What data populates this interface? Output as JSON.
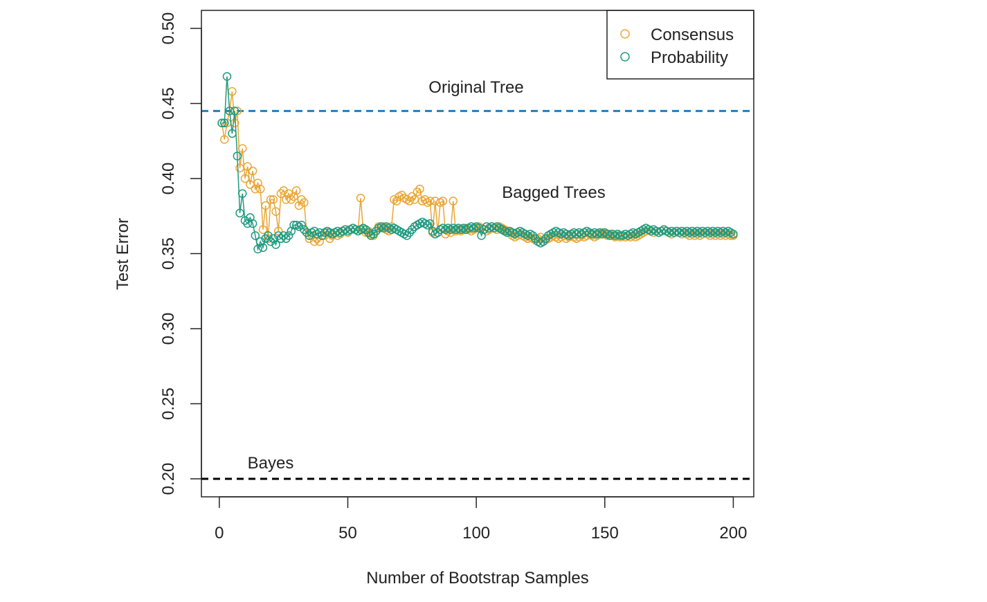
{
  "chart_data": {
    "type": "line",
    "xlabel": "Number of Bootstrap Samples",
    "ylabel": "Test Error",
    "xlim": [
      -6.96,
      207.96
    ],
    "ylim": [
      0.188,
      0.512
    ],
    "xticks": [
      0,
      50,
      100,
      150,
      200
    ],
    "yticks": [
      {
        "value": 0.2,
        "label": "0.20"
      },
      0.25,
      {
        "value": 0.3,
        "label": "0.30"
      },
      0.35,
      {
        "value": 0.4,
        "label": "0.40"
      },
      0.45,
      {
        "value": 0.5,
        "label": "0.50"
      }
    ],
    "legend": "top-right",
    "reference_lines": [
      {
        "value": 0.445,
        "color": "#1f7fc0"
      },
      {
        "value": 0.2,
        "color": "#000000"
      }
    ],
    "annotations": [
      "Original Tree",
      "Bagged Trees",
      "Bayes"
    ],
    "x": [
      1,
      2,
      3,
      4,
      5,
      6,
      7,
      8,
      9,
      10,
      11,
      12,
      13,
      14,
      15,
      16,
      17,
      18,
      19,
      20,
      21,
      22,
      23,
      24,
      25,
      26,
      27,
      28,
      29,
      30,
      31,
      32,
      33,
      34,
      35,
      36,
      37,
      38,
      39,
      40,
      41,
      42,
      43,
      44,
      45,
      46,
      47,
      48,
      49,
      50,
      51,
      52,
      53,
      54,
      55,
      56,
      57,
      58,
      59,
      60,
      61,
      62,
      63,
      64,
      65,
      66,
      67,
      68,
      69,
      70,
      71,
      72,
      73,
      74,
      75,
      76,
      77,
      78,
      79,
      80,
      81,
      82,
      83,
      84,
      85,
      86,
      87,
      88,
      89,
      90,
      91,
      92,
      93,
      94,
      95,
      96,
      97,
      98,
      99,
      100,
      101,
      102,
      103,
      104,
      105,
      106,
      107,
      108,
      109,
      110,
      111,
      112,
      113,
      114,
      115,
      116,
      117,
      118,
      119,
      120,
      121,
      122,
      123,
      124,
      125,
      126,
      127,
      128,
      129,
      130,
      131,
      132,
      133,
      134,
      135,
      136,
      137,
      138,
      139,
      140,
      141,
      142,
      143,
      144,
      145,
      146,
      147,
      148,
      149,
      150,
      151,
      152,
      153,
      154,
      155,
      156,
      157,
      158,
      159,
      160,
      161,
      162,
      163,
      164,
      165,
      166,
      167,
      168,
      169,
      170,
      171,
      172,
      173,
      174,
      175,
      176,
      177,
      178,
      179,
      180,
      181,
      182,
      183,
      184,
      185,
      186,
      187,
      188,
      189,
      190,
      191,
      192,
      193,
      194,
      195,
      196,
      197,
      198,
      199,
      200
    ],
    "series": [
      {
        "name": "Consensus",
        "color": "#eaa636",
        "values": [
          0.437,
          0.426,
          0.437,
          0.445,
          0.458,
          0.437,
          0.445,
          0.407,
          0.42,
          0.4,
          0.408,
          0.396,
          0.405,
          0.393,
          0.397,
          0.393,
          0.366,
          0.382,
          0.36,
          0.386,
          0.386,
          0.378,
          0.365,
          0.39,
          0.392,
          0.386,
          0.39,
          0.386,
          0.388,
          0.392,
          0.382,
          0.386,
          0.384,
          0.364,
          0.36,
          0.362,
          0.358,
          0.36,
          0.358,
          0.362,
          0.362,
          0.364,
          0.36,
          0.362,
          0.364,
          0.362,
          0.363,
          0.365,
          0.366,
          0.364,
          0.366,
          0.367,
          0.366,
          0.365,
          0.387,
          0.366,
          0.364,
          0.365,
          0.363,
          0.362,
          0.365,
          0.368,
          0.367,
          0.368,
          0.366,
          0.365,
          0.368,
          0.386,
          0.385,
          0.388,
          0.389,
          0.387,
          0.386,
          0.385,
          0.388,
          0.386,
          0.391,
          0.393,
          0.385,
          0.386,
          0.384,
          0.385,
          0.364,
          0.385,
          0.364,
          0.384,
          0.385,
          0.363,
          0.365,
          0.364,
          0.385,
          0.365,
          0.366,
          0.365,
          0.366,
          0.367,
          0.366,
          0.365,
          0.366,
          0.367,
          0.368,
          0.367,
          0.366,
          0.365,
          0.366,
          0.368,
          0.367,
          0.366,
          0.368,
          0.367,
          0.366,
          0.365,
          0.364,
          0.362,
          0.361,
          0.362,
          0.363,
          0.362,
          0.361,
          0.36,
          0.361,
          0.36,
          0.359,
          0.36,
          0.361,
          0.358,
          0.359,
          0.36,
          0.361,
          0.362,
          0.361,
          0.36,
          0.361,
          0.362,
          0.36,
          0.361,
          0.362,
          0.361,
          0.36,
          0.361,
          0.362,
          0.361,
          0.362,
          0.363,
          0.362,
          0.361,
          0.362,
          0.363,
          0.364,
          0.363,
          0.362,
          0.363,
          0.362,
          0.361,
          0.362,
          0.361,
          0.362,
          0.361,
          0.362,
          0.361,
          0.362,
          0.361,
          0.362,
          0.363,
          0.364,
          0.365,
          0.366,
          0.365,
          0.364,
          0.365,
          0.364,
          0.365,
          0.366,
          0.365,
          0.364,
          0.363,
          0.364,
          0.365,
          0.364,
          0.363,
          0.364,
          0.363,
          0.362,
          0.363,
          0.362,
          0.363,
          0.362,
          0.363,
          0.364,
          0.363,
          0.362,
          0.363,
          0.362,
          0.363,
          0.362,
          0.363,
          0.362,
          0.363,
          0.362,
          0.362
        ]
      },
      {
        "name": "Probability",
        "color": "#1f9a80",
        "values": [
          0.437,
          0.437,
          0.468,
          0.445,
          0.43,
          0.445,
          0.415,
          0.377,
          0.39,
          0.372,
          0.37,
          0.374,
          0.37,
          0.362,
          0.353,
          0.358,
          0.354,
          0.36,
          0.362,
          0.358,
          0.36,
          0.356,
          0.362,
          0.36,
          0.362,
          0.36,
          0.362,
          0.365,
          0.369,
          0.369,
          0.368,
          0.369,
          0.366,
          0.364,
          0.362,
          0.364,
          0.365,
          0.363,
          0.364,
          0.362,
          0.364,
          0.365,
          0.364,
          0.363,
          0.364,
          0.365,
          0.364,
          0.365,
          0.366,
          0.365,
          0.366,
          0.367,
          0.366,
          0.365,
          0.366,
          0.367,
          0.366,
          0.364,
          0.362,
          0.363,
          0.365,
          0.367,
          0.368,
          0.367,
          0.368,
          0.367,
          0.366,
          0.367,
          0.366,
          0.365,
          0.364,
          0.363,
          0.362,
          0.364,
          0.366,
          0.368,
          0.369,
          0.37,
          0.371,
          0.37,
          0.369,
          0.37,
          0.365,
          0.363,
          0.364,
          0.366,
          0.367,
          0.366,
          0.367,
          0.366,
          0.367,
          0.366,
          0.367,
          0.366,
          0.367,
          0.366,
          0.367,
          0.368,
          0.367,
          0.368,
          0.367,
          0.362,
          0.366,
          0.368,
          0.367,
          0.368,
          0.367,
          0.368,
          0.367,
          0.366,
          0.365,
          0.364,
          0.365,
          0.364,
          0.363,
          0.364,
          0.365,
          0.364,
          0.363,
          0.362,
          0.363,
          0.362,
          0.36,
          0.358,
          0.357,
          0.358,
          0.36,
          0.362,
          0.363,
          0.364,
          0.365,
          0.364,
          0.363,
          0.364,
          0.363,
          0.362,
          0.363,
          0.364,
          0.363,
          0.364,
          0.363,
          0.364,
          0.365,
          0.364,
          0.363,
          0.364,
          0.363,
          0.364,
          0.363,
          0.364,
          0.363,
          0.362,
          0.363,
          0.362,
          0.363,
          0.362,
          0.362,
          0.363,
          0.362,
          0.363,
          0.364,
          0.363,
          0.364,
          0.365,
          0.366,
          0.367,
          0.366,
          0.365,
          0.366,
          0.365,
          0.364,
          0.365,
          0.366,
          0.365,
          0.364,
          0.365,
          0.364,
          0.365,
          0.364,
          0.365,
          0.364,
          0.365,
          0.364,
          0.365,
          0.364,
          0.365,
          0.364,
          0.365,
          0.364,
          0.365,
          0.364,
          0.365,
          0.364,
          0.365,
          0.364,
          0.365,
          0.364,
          0.365,
          0.364,
          0.363
        ]
      }
    ]
  }
}
